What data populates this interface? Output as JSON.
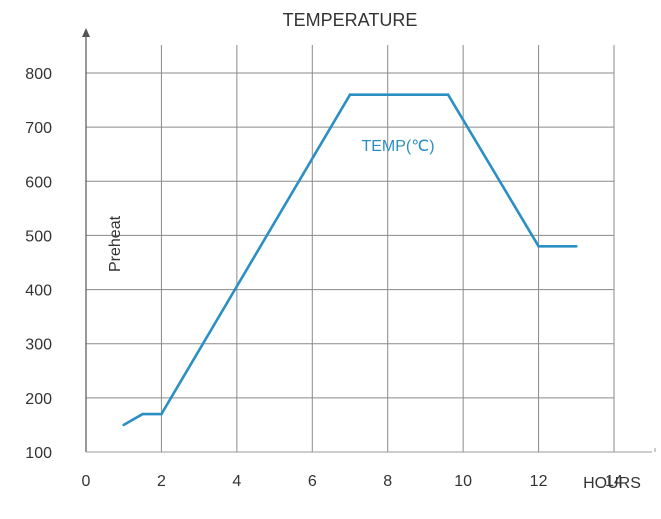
{
  "chart_data": {
    "type": "line",
    "title": "TEMPERATURE",
    "xlabel": "HOURS",
    "ylabel": "",
    "xlim": [
      0,
      14
    ],
    "ylim": [
      100,
      800
    ],
    "x_ticks": [
      "0",
      "2",
      "4",
      "6",
      "8",
      "10",
      "12",
      "14"
    ],
    "y_ticks": [
      "100",
      "200",
      "300",
      "400",
      "500",
      "600",
      "700",
      "800"
    ],
    "grid": true,
    "annotations": [
      {
        "text": "Preheat"
      }
    ],
    "series": [
      {
        "name": "TEMP(℃)",
        "color": "#2b8fc4",
        "x": [
          1,
          1.5,
          2,
          7,
          9.6,
          12,
          13
        ],
        "y": [
          150,
          170,
          170,
          760,
          760,
          480,
          480
        ]
      }
    ]
  }
}
